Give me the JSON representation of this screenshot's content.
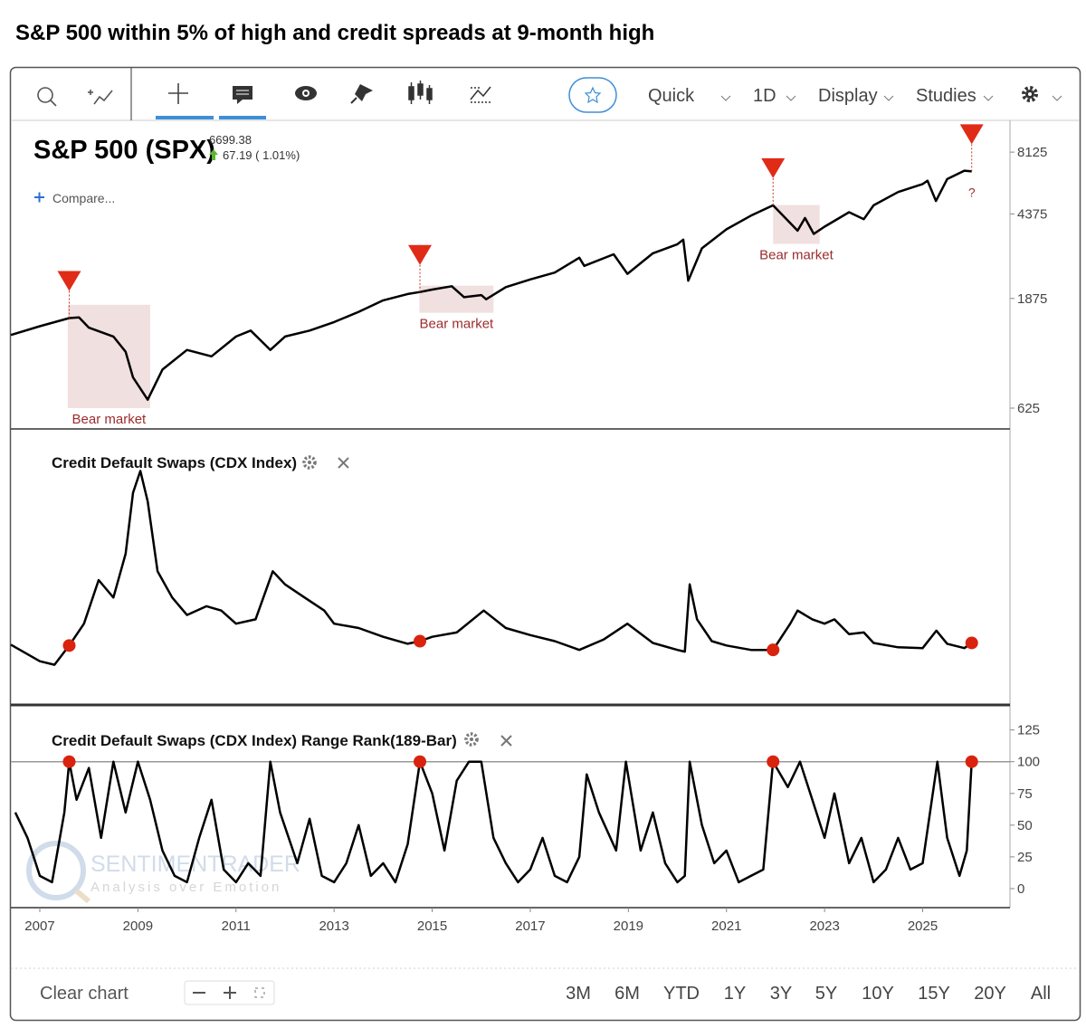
{
  "title": "S&P 500 within 5% of high and credit spreads at 9-month high",
  "toolbar": {
    "items": [
      "Quick",
      "1D",
      "Display",
      "Studies"
    ]
  },
  "watermark": {
    "name": "SENTIMENTRADER",
    "tagline": "Analysis over Emotion"
  },
  "footer": {
    "clear": "Clear chart",
    "ranges": [
      "3M",
      "6M",
      "YTD",
      "1Y",
      "3Y",
      "5Y",
      "10Y",
      "15Y",
      "20Y",
      "All"
    ]
  },
  "chart_data": [
    {
      "type": "line",
      "title": "S&P 500 (SPX)",
      "last": "6699.38",
      "change": "67.19 ( 1.01%)",
      "compare": "Compare...",
      "log_scale": true,
      "color": "#000000",
      "xlim": [
        2006.41,
        2026.78
      ],
      "ylim": [
        512,
        10970
      ],
      "yticks": [
        625,
        1875,
        4375,
        8125
      ],
      "x": [
        2006.41,
        2007.0,
        2007.5,
        2007.6,
        2007.8,
        2008.0,
        2008.5,
        2008.75,
        2008.9,
        2009.2,
        2009.5,
        2010.0,
        2010.5,
        2011.0,
        2011.3,
        2011.7,
        2012.0,
        2012.5,
        2013.0,
        2013.5,
        2014.0,
        2014.5,
        2014.75,
        2015.0,
        2015.4,
        2015.65,
        2016.0,
        2016.1,
        2016.5,
        2017.0,
        2017.5,
        2018.0,
        2018.1,
        2018.7,
        2018.98,
        2019.5,
        2020.0,
        2020.12,
        2020.22,
        2020.5,
        2021.0,
        2021.5,
        2021.95,
        2022.45,
        2022.6,
        2022.78,
        2023.0,
        2023.5,
        2023.8,
        2024.0,
        2024.5,
        2025.0,
        2025.1,
        2025.27,
        2025.5,
        2025.85,
        2026.0
      ],
      "values": [
        1300,
        1420,
        1520,
        1540,
        1550,
        1400,
        1280,
        1100,
        850,
        680,
        920,
        1120,
        1050,
        1280,
        1360,
        1120,
        1280,
        1360,
        1480,
        1640,
        1840,
        1960,
        2000,
        2050,
        2120,
        1900,
        1940,
        1860,
        2100,
        2270,
        2430,
        2820,
        2600,
        2920,
        2400,
        2950,
        3230,
        3380,
        2240,
        3100,
        3750,
        4300,
        4770,
        3700,
        4200,
        3580,
        3850,
        4450,
        4150,
        4770,
        5450,
        5900,
        6100,
        4980,
        6200,
        6750,
        6699
      ],
      "signals": [
        2007.6,
        2014.75,
        2021.95,
        2026.0
      ],
      "spans": [
        {
          "x": [
            2007.57,
            2009.25
          ],
          "y": [
            625,
            1760
          ],
          "label": "Bear market"
        },
        {
          "x": [
            2014.74,
            2016.25
          ],
          "y": [
            1624,
            2132
          ],
          "label": "Bear market"
        },
        {
          "x": [
            2021.95,
            2022.9
          ],
          "y": [
            3239,
            4785
          ],
          "label": "Bear market"
        }
      ],
      "annotation": {
        "x": 2026.0,
        "y": 5480,
        "label": "?"
      }
    },
    {
      "type": "line",
      "title": "Credit Default Swaps (CDX Index)",
      "color": "#000000",
      "xlim": [
        2006.41,
        2026.78
      ],
      "ylim": [
        -12,
        302
      ],
      "x": [
        2006.41,
        2007.0,
        2007.3,
        2007.6,
        2007.9,
        2008.2,
        2008.5,
        2008.75,
        2008.9,
        2009.05,
        2009.2,
        2009.4,
        2009.7,
        2010.0,
        2010.4,
        2010.7,
        2011.0,
        2011.4,
        2011.75,
        2012.0,
        2012.4,
        2012.8,
        2013.0,
        2013.5,
        2014.0,
        2014.5,
        2014.75,
        2015.0,
        2015.5,
        2016.05,
        2016.5,
        2017.0,
        2017.5,
        2018.0,
        2018.5,
        2018.98,
        2019.5,
        2020.0,
        2020.15,
        2020.25,
        2020.4,
        2020.7,
        2021.0,
        2021.5,
        2021.95,
        2022.3,
        2022.45,
        2022.75,
        2023.0,
        2023.2,
        2023.5,
        2023.8,
        2024.0,
        2024.5,
        2025.0,
        2025.28,
        2025.5,
        2025.85,
        2026.0
      ],
      "values": [
        56,
        37,
        33,
        55,
        80,
        130,
        110,
        160,
        230,
        255,
        220,
        140,
        110,
        90,
        100,
        95,
        80,
        85,
        140,
        125,
        110,
        95,
        80,
        75,
        65,
        57,
        60,
        65,
        70,
        95,
        75,
        67,
        60,
        50,
        62,
        80,
        58,
        50,
        48,
        125,
        85,
        60,
        55,
        50,
        50,
        80,
        95,
        85,
        80,
        85,
        68,
        70,
        58,
        53,
        52,
        72,
        57,
        52,
        58
      ],
      "markers": {
        "x": [
          2007.6,
          2014.75,
          2021.95,
          2026.0
        ],
        "values": [
          55,
          60,
          50,
          58
        ]
      }
    },
    {
      "type": "line",
      "title": "Credit Default Swaps (CDX Index) Range Rank(189-Bar)",
      "color": "#000000",
      "xlim": [
        2006.41,
        2026.78
      ],
      "ylim": [
        -15,
        144
      ],
      "yticks": [
        0,
        25,
        50,
        75,
        100,
        125
      ],
      "hline": 100,
      "xticks": [
        2007,
        2009,
        2011,
        2013,
        2015,
        2017,
        2019,
        2021,
        2023,
        2025
      ],
      "x": [
        2006.5,
        2006.75,
        2007.0,
        2007.25,
        2007.5,
        2007.6,
        2007.75,
        2008.0,
        2008.25,
        2008.5,
        2008.75,
        2009.0,
        2009.25,
        2009.5,
        2009.75,
        2010.0,
        2010.25,
        2010.5,
        2010.75,
        2011.0,
        2011.25,
        2011.5,
        2011.7,
        2011.9,
        2012.25,
        2012.5,
        2012.75,
        2013.0,
        2013.25,
        2013.5,
        2013.75,
        2014.0,
        2014.25,
        2014.5,
        2014.75,
        2015.0,
        2015.25,
        2015.5,
        2015.75,
        2016.0,
        2016.25,
        2016.5,
        2016.75,
        2017.0,
        2017.25,
        2017.5,
        2017.75,
        2018.0,
        2018.15,
        2018.4,
        2018.75,
        2018.95,
        2019.25,
        2019.5,
        2019.75,
        2020.0,
        2020.15,
        2020.25,
        2020.5,
        2020.75,
        2021.0,
        2021.25,
        2021.5,
        2021.75,
        2021.95,
        2022.25,
        2022.5,
        2022.75,
        2023.0,
        2023.2,
        2023.5,
        2023.75,
        2024.0,
        2024.25,
        2024.5,
        2024.75,
        2025.0,
        2025.3,
        2025.5,
        2025.75,
        2025.9,
        2026.0
      ],
      "values": [
        60,
        40,
        10,
        5,
        60,
        100,
        70,
        95,
        40,
        100,
        60,
        100,
        70,
        30,
        10,
        5,
        40,
        70,
        15,
        5,
        20,
        10,
        100,
        60,
        20,
        55,
        10,
        5,
        20,
        50,
        10,
        20,
        5,
        35,
        100,
        75,
        30,
        85,
        100,
        100,
        40,
        20,
        5,
        15,
        40,
        10,
        5,
        25,
        90,
        60,
        30,
        100,
        30,
        60,
        20,
        5,
        10,
        100,
        50,
        20,
        30,
        5,
        10,
        15,
        100,
        80,
        100,
        70,
        40,
        75,
        20,
        40,
        5,
        15,
        40,
        15,
        20,
        100,
        40,
        10,
        30,
        100
      ],
      "markers": {
        "x": [
          2007.6,
          2014.75,
          2021.95,
          2026.0
        ],
        "values": [
          100,
          100,
          100,
          100
        ]
      }
    }
  ]
}
